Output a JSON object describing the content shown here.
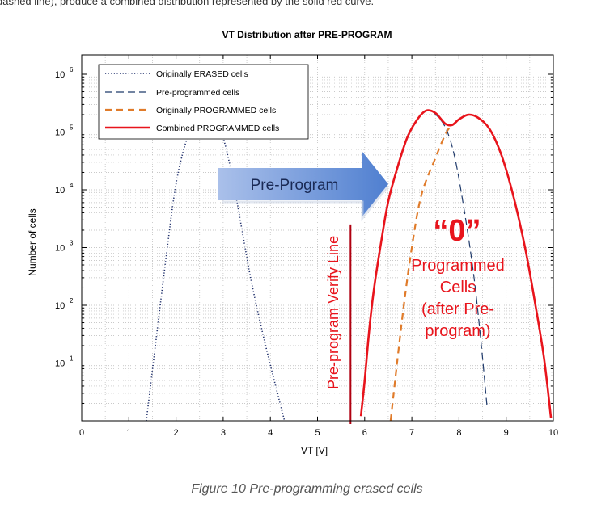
{
  "header_fragment": "dashed line), produce a combined distribution represented by the solid red curve.",
  "caption": "Figure 10  Pre-programming erased cells",
  "arrow_label": "Pre-Program",
  "verify_label": "Pre-program Verify Line",
  "annotation": {
    "zero": "“0”",
    "lines": [
      "Programmed",
      "Cells",
      "(after Pre-",
      "program)"
    ]
  },
  "colors": {
    "erased": "#1f2f6b",
    "preprog": "#1f3a6b",
    "origprog": "#e07b2a",
    "combined": "#e8141c",
    "verify": "#b00010",
    "arrow_start": "#aac0ea",
    "arrow_end": "#4f7fd0",
    "grid": "#b8b8b8"
  },
  "chart_data": {
    "type": "line",
    "title": "VT Distribution after PRE-PROGRAM",
    "xlabel": "VT [V]",
    "ylabel": "Number of cells",
    "xlim": [
      0,
      10
    ],
    "ylim_log10": [
      0,
      6
    ],
    "xticks": [
      0,
      1,
      2,
      3,
      4,
      5,
      6,
      7,
      8,
      9,
      10
    ],
    "yticks": [
      {
        "exp": 1,
        "base": "10",
        "sup": "1"
      },
      {
        "exp": 2,
        "base": "10",
        "sup": "2"
      },
      {
        "exp": 3,
        "base": "10",
        "sup": "3"
      },
      {
        "exp": 4,
        "base": "10",
        "sup": "4"
      },
      {
        "exp": 5,
        "base": "10",
        "sup": "5"
      },
      {
        "exp": 6,
        "base": "10",
        "sup": "6"
      }
    ],
    "grid": true,
    "legend_position": "top-left",
    "verify_x": 5.7,
    "verify_top_log10": 3.4,
    "series": [
      {
        "name": "Originally ERASED cells",
        "style": "dotted",
        "points": [
          [
            1.37,
            0
          ],
          [
            1.8,
            2.9
          ],
          [
            2.0,
            4.1
          ],
          [
            2.2,
            4.8
          ],
          [
            2.4,
            5.25
          ],
          [
            2.6,
            5.38
          ],
          [
            2.8,
            5.25
          ],
          [
            3.0,
            4.9
          ],
          [
            3.2,
            4.2
          ],
          [
            3.4,
            3.3
          ],
          [
            3.6,
            2.4
          ],
          [
            3.9,
            1.3
          ],
          [
            4.3,
            0
          ]
        ]
      },
      {
        "name": "Pre-programmed cells",
        "style": "dashed",
        "points": [
          [
            7.45,
            5.35
          ],
          [
            7.7,
            5.1
          ],
          [
            7.9,
            4.6
          ],
          [
            8.1,
            3.7
          ],
          [
            8.3,
            2.6
          ],
          [
            8.45,
            1.5
          ],
          [
            8.6,
            0.2
          ]
        ]
      },
      {
        "name": "Originally PROGRAMMED cells",
        "style": "dashed",
        "points": [
          [
            6.55,
            0
          ],
          [
            6.8,
            1.8
          ],
          [
            7.0,
            3.0
          ],
          [
            7.2,
            3.9
          ],
          [
            7.5,
            4.55
          ],
          [
            7.75,
            5.02
          ],
          [
            7.95,
            5.18
          ]
        ]
      },
      {
        "name": "Combined PROGRAMMED cells",
        "style": "solid",
        "points": [
          [
            5.92,
            0.08
          ],
          [
            6.0,
            0.7
          ],
          [
            6.1,
            1.6
          ],
          [
            6.2,
            2.3
          ],
          [
            6.35,
            3.1
          ],
          [
            6.5,
            3.8
          ],
          [
            6.7,
            4.4
          ],
          [
            6.9,
            4.9
          ],
          [
            7.1,
            5.2
          ],
          [
            7.3,
            5.37
          ],
          [
            7.5,
            5.33
          ],
          [
            7.7,
            5.15
          ],
          [
            7.85,
            5.12
          ],
          [
            8.0,
            5.22
          ],
          [
            8.2,
            5.3
          ],
          [
            8.4,
            5.25
          ],
          [
            8.65,
            5.05
          ],
          [
            8.9,
            4.6
          ],
          [
            9.15,
            3.9
          ],
          [
            9.4,
            3.0
          ],
          [
            9.6,
            2.1
          ],
          [
            9.8,
            1.1
          ],
          [
            9.95,
            0.05
          ]
        ]
      }
    ]
  }
}
